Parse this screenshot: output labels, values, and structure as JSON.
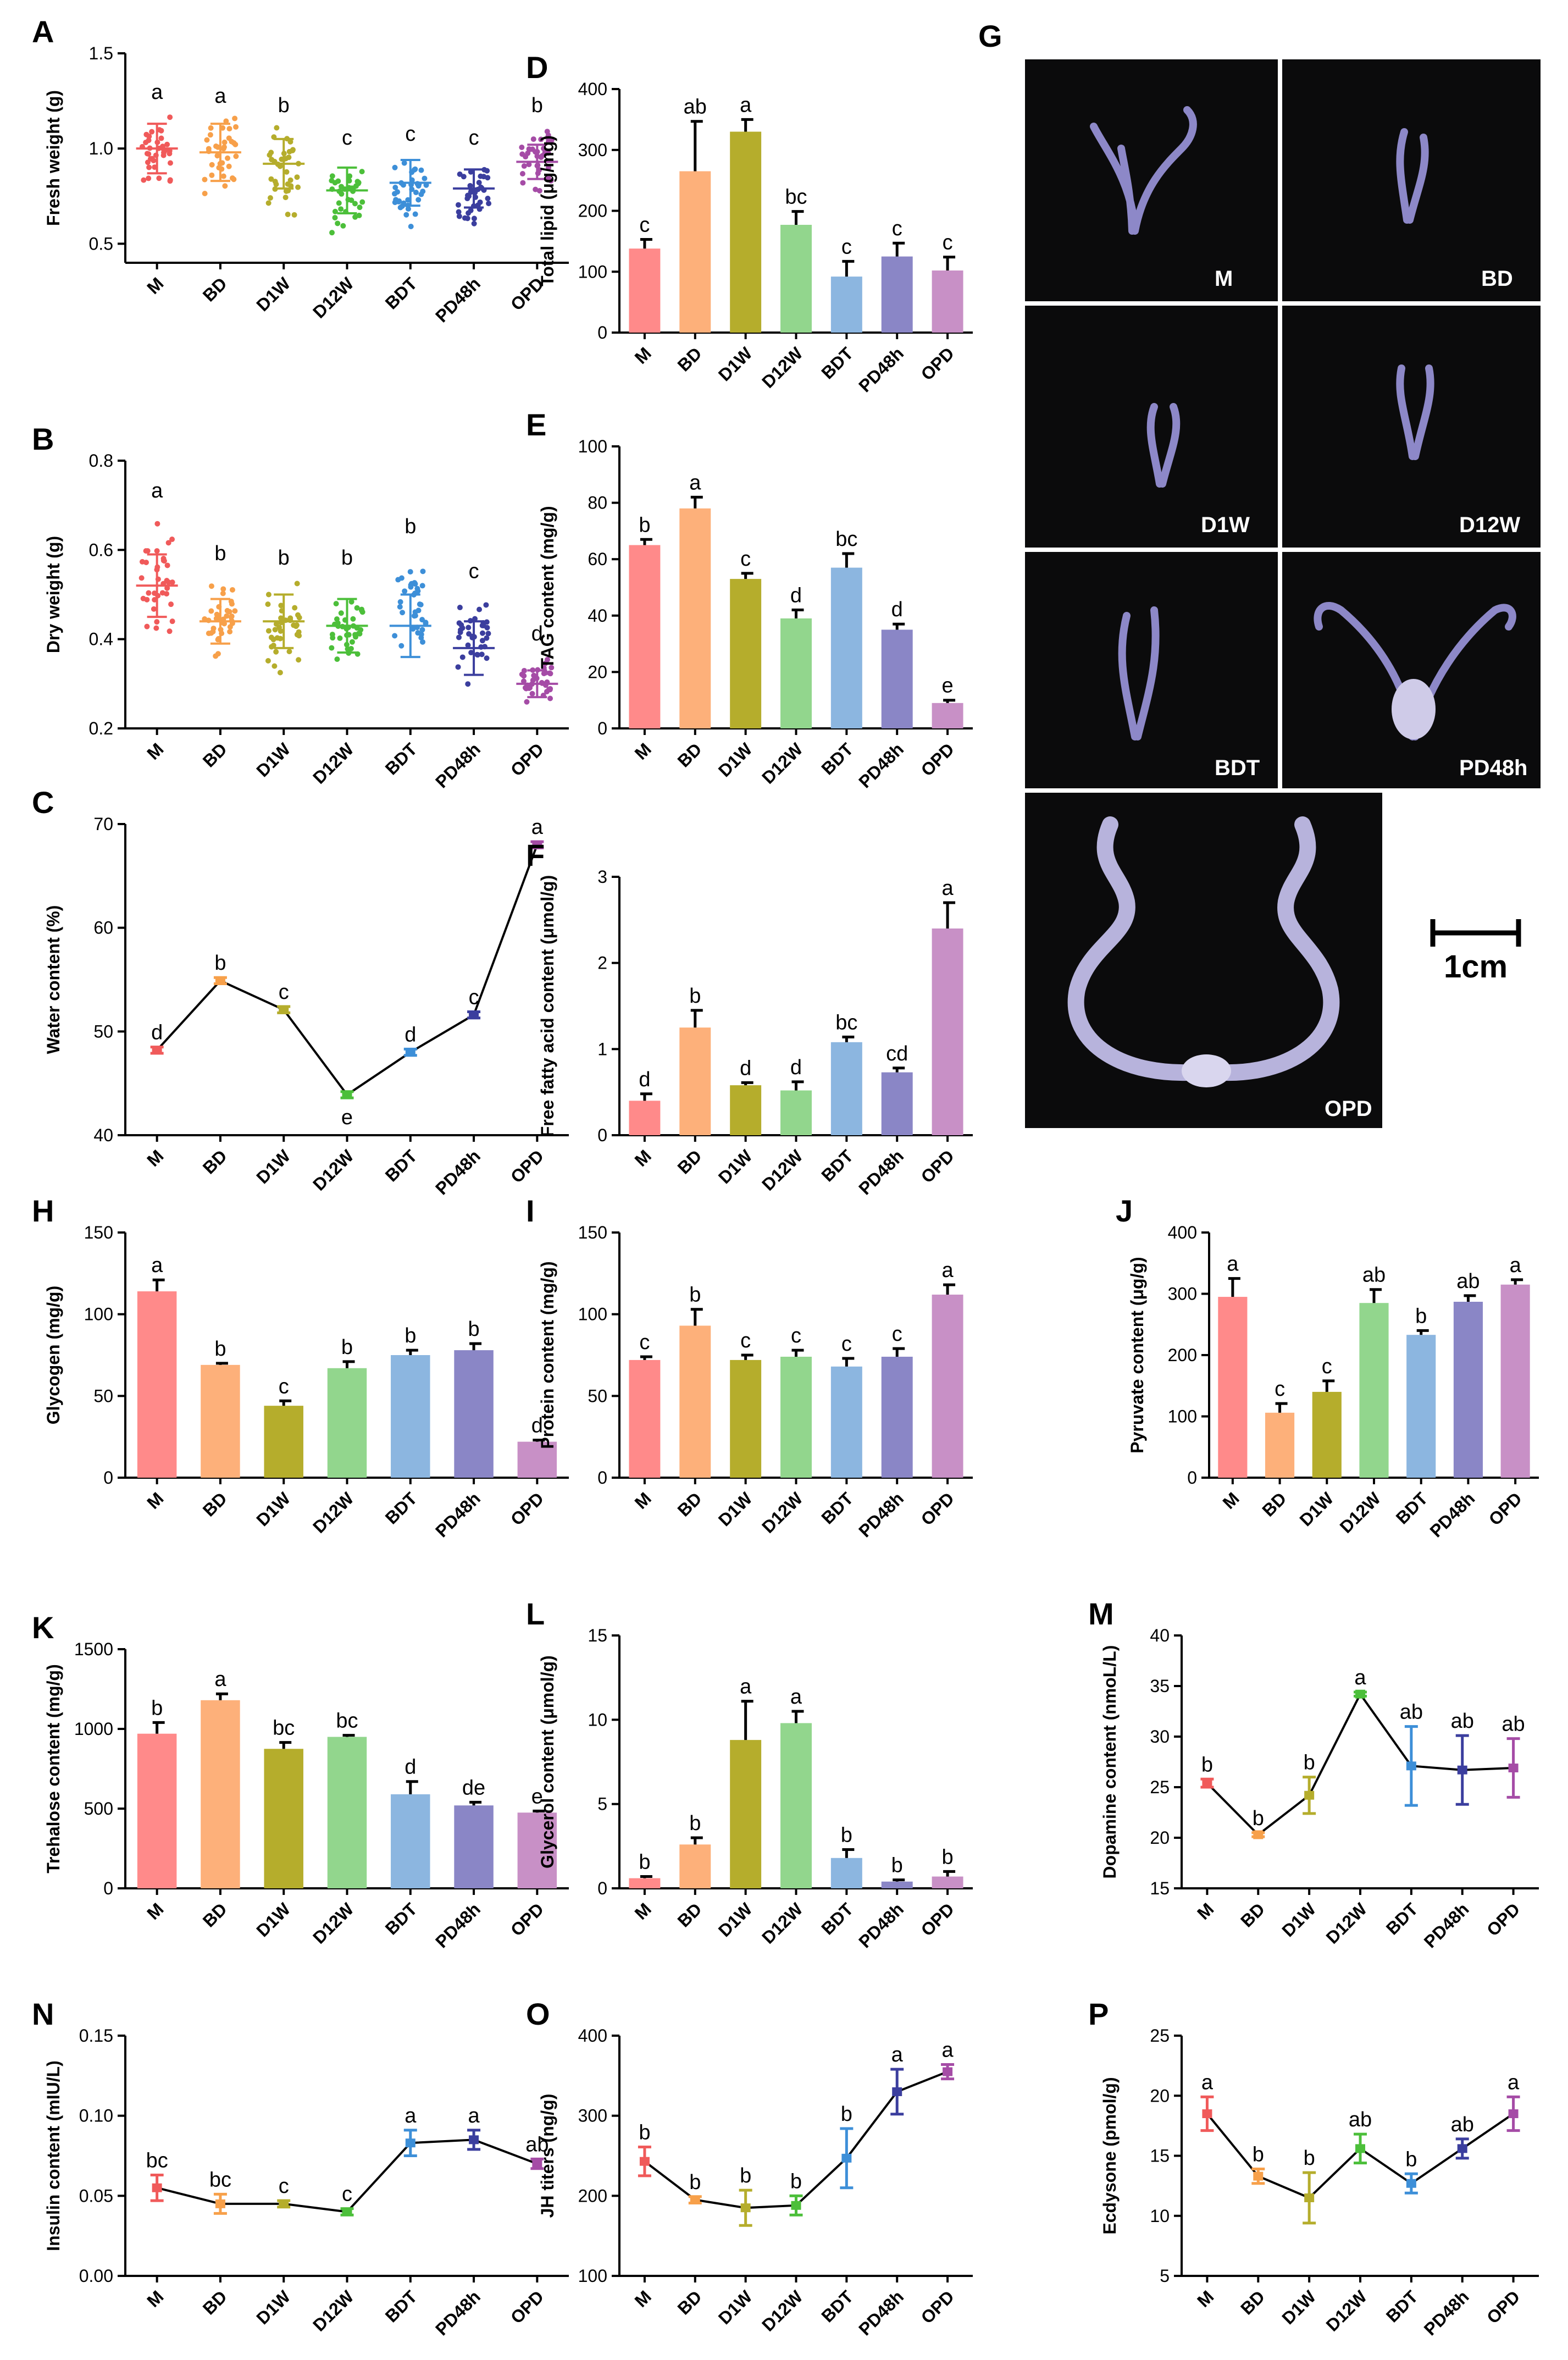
{
  "colors": {
    "M": "#FF8A8A",
    "BD": "#FDB07A",
    "D1W": "#B5AD2C",
    "D12W": "#92D68D",
    "BDT": "#8CB6E0",
    "PD48h": "#8A86C6",
    "OPD": "#C890C6",
    "scatter_M": "#F05A5A",
    "scatter_BD": "#F7A04A",
    "scatter_D1W": "#B5AD2C",
    "scatter_D12W": "#4CBF3A",
    "scatter_BDT": "#3D8FD8",
    "scatter_PD48h": "#3B3E9E",
    "scatter_OPD": "#A54CA6",
    "errbar": "#000000",
    "line": "#000000"
  },
  "photos": {
    "panel_label": "G",
    "labels": [
      "M",
      "BD",
      "D1W",
      "D12W",
      "BDT",
      "PD48h",
      "OPD"
    ],
    "scale_bar": "1cm"
  },
  "chart_data": [
    {
      "id": "A",
      "letter": "A",
      "type": "scatter",
      "ylabel": "Fresh weight (g)",
      "categories": [
        "M",
        "BD",
        "D1W",
        "D12W",
        "BDT",
        "PD48h",
        "OPD"
      ],
      "ylim": [
        0.4,
        1.5
      ],
      "yticks": [
        "0.5",
        "1.0",
        "1.5"
      ],
      "ytickvals": [
        0.5,
        1.0,
        1.5
      ],
      "means": [
        1.0,
        0.98,
        0.92,
        0.78,
        0.82,
        0.79,
        0.93
      ],
      "sd": [
        0.13,
        0.15,
        0.13,
        0.12,
        0.12,
        0.1,
        0.09
      ],
      "point_min": [
        0.73,
        0.72,
        0.62,
        0.48,
        0.55,
        0.55,
        0.75
      ],
      "point_max": [
        1.22,
        1.2,
        1.15,
        0.98,
        1.0,
        0.98,
        1.15
      ],
      "sig": [
        "a",
        "a",
        "b",
        "c",
        "c",
        "c",
        "b"
      ]
    },
    {
      "id": "B",
      "letter": "B",
      "type": "scatter",
      "ylabel": "Dry weight (g)",
      "categories": [
        "M",
        "BD",
        "D1W",
        "D12W",
        "BDT",
        "PD48h",
        "OPD"
      ],
      "ylim": [
        0.2,
        0.8
      ],
      "yticks": [
        "0.2",
        "0.4",
        "0.6",
        "0.8"
      ],
      "ytickvals": [
        0.2,
        0.4,
        0.6,
        0.8
      ],
      "means": [
        0.52,
        0.44,
        0.44,
        0.43,
        0.43,
        0.38,
        0.3
      ],
      "sd": [
        0.07,
        0.05,
        0.06,
        0.06,
        0.07,
        0.06,
        0.03
      ],
      "point_min": [
        0.36,
        0.32,
        0.3,
        0.3,
        0.3,
        0.28,
        0.24
      ],
      "point_max": [
        0.7,
        0.56,
        0.55,
        0.55,
        0.62,
        0.52,
        0.38
      ],
      "sig": [
        "a",
        "b",
        "b",
        "b",
        "b",
        "c",
        "d"
      ]
    },
    {
      "id": "C",
      "letter": "C",
      "type": "line",
      "ylabel": "Water content (%)",
      "categories": [
        "M",
        "BD",
        "D1W",
        "D12W",
        "BDT",
        "PD48h",
        "OPD"
      ],
      "ylim": [
        40,
        70
      ],
      "yticks": [
        "40",
        "50",
        "60",
        "70"
      ],
      "ytickvals": [
        40,
        50,
        60,
        70
      ],
      "values": [
        48.2,
        54.9,
        52.1,
        43.9,
        48.0,
        51.6,
        68.0
      ],
      "err": [
        0.3,
        0.3,
        0.3,
        0.3,
        0.3,
        0.3,
        0.3
      ],
      "sig": [
        "d",
        "b",
        "c",
        "e",
        "d",
        "c",
        "a"
      ],
      "sig_pos": [
        "above",
        "above",
        "above",
        "below",
        "above",
        "above",
        "above"
      ]
    },
    {
      "id": "D",
      "letter": "D",
      "type": "bar",
      "ylabel": "Total lipid (μg/mg)",
      "categories": [
        "M",
        "BD",
        "D1W",
        "D12W",
        "BDT",
        "PD48h",
        "OPD"
      ],
      "ylim": [
        0,
        400
      ],
      "yticks": [
        "0",
        "100",
        "200",
        "300",
        "400"
      ],
      "ytickvals": [
        0,
        100,
        200,
        300,
        400
      ],
      "values": [
        138,
        265,
        330,
        177,
        92,
        125,
        102
      ],
      "err": [
        15,
        82,
        20,
        22,
        25,
        22,
        22
      ],
      "sig": [
        "c",
        "ab",
        "a",
        "bc",
        "c",
        "c",
        "c"
      ]
    },
    {
      "id": "E",
      "letter": "E",
      "type": "bar",
      "ylabel": "TAG content (mg/g)",
      "categories": [
        "M",
        "BD",
        "D1W",
        "D12W",
        "BDT",
        "PD48h",
        "OPD"
      ],
      "ylim": [
        0,
        100
      ],
      "yticks": [
        "0",
        "20",
        "40",
        "60",
        "80",
        "100"
      ],
      "ytickvals": [
        0,
        20,
        40,
        60,
        80,
        100
      ],
      "values": [
        65,
        78,
        53,
        39,
        57,
        35,
        9
      ],
      "err": [
        2,
        4,
        2,
        3,
        5,
        2,
        1
      ],
      "sig": [
        "b",
        "a",
        "c",
        "d",
        "bc",
        "d",
        "e"
      ]
    },
    {
      "id": "F",
      "letter": "F",
      "type": "bar",
      "ylabel": "Free fatty acid content (μmol/g)",
      "categories": [
        "M",
        "BD",
        "D1W",
        "D12W",
        "BDT",
        "PD48h",
        "OPD"
      ],
      "ylim": [
        0,
        3
      ],
      "yticks": [
        "0",
        "1",
        "2",
        "3"
      ],
      "ytickvals": [
        0,
        1,
        2,
        3
      ],
      "values": [
        0.4,
        1.25,
        0.58,
        0.52,
        1.08,
        0.73,
        2.4
      ],
      "err": [
        0.08,
        0.2,
        0.03,
        0.1,
        0.06,
        0.05,
        0.3
      ],
      "sig": [
        "d",
        "b",
        "d",
        "d",
        "bc",
        "cd",
        "a"
      ]
    },
    {
      "id": "H",
      "letter": "H",
      "type": "bar",
      "ylabel": "Glycogen (mg/g)",
      "categories": [
        "M",
        "BD",
        "D1W",
        "D12W",
        "BDT",
        "PD48h",
        "OPD"
      ],
      "ylim": [
        0,
        150
      ],
      "yticks": [
        "0",
        "50",
        "100",
        "150"
      ],
      "ytickvals": [
        0,
        50,
        100,
        150
      ],
      "values": [
        114,
        69,
        44,
        67,
        75,
        78,
        22
      ],
      "err": [
        7,
        1,
        3,
        4,
        3,
        4,
        1
      ],
      "sig": [
        "a",
        "b",
        "c",
        "b",
        "b",
        "b",
        "d"
      ]
    },
    {
      "id": "I",
      "letter": "I",
      "type": "bar",
      "ylabel": "Protein content (mg/g)",
      "categories": [
        "M",
        "BD",
        "D1W",
        "D12W",
        "BDT",
        "PD48h",
        "OPD"
      ],
      "ylim": [
        0,
        150
      ],
      "yticks": [
        "0",
        "50",
        "100",
        "150"
      ],
      "ytickvals": [
        0,
        50,
        100,
        150
      ],
      "values": [
        72,
        93,
        72,
        74,
        68,
        74,
        112
      ],
      "err": [
        2,
        10,
        3,
        4,
        5,
        5,
        6
      ],
      "sig": [
        "c",
        "b",
        "c",
        "c",
        "c",
        "c",
        "a"
      ]
    },
    {
      "id": "J",
      "letter": "J",
      "type": "bar",
      "ylabel": "Pyruvate content (μg/g)",
      "categories": [
        "M",
        "BD",
        "D1W",
        "D12W",
        "BDT",
        "PD48h",
        "OPD"
      ],
      "ylim": [
        0,
        400
      ],
      "yticks": [
        "0",
        "100",
        "200",
        "300",
        "400"
      ],
      "ytickvals": [
        0,
        100,
        200,
        300,
        400
      ],
      "values": [
        295,
        106,
        140,
        285,
        233,
        287,
        315
      ],
      "err": [
        30,
        15,
        18,
        22,
        7,
        10,
        8
      ],
      "sig": [
        "a",
        "c",
        "c",
        "ab",
        "b",
        "ab",
        "a"
      ]
    },
    {
      "id": "K",
      "letter": "K",
      "type": "bar",
      "ylabel": "Trehalose content (mg/g)",
      "categories": [
        "M",
        "BD",
        "D1W",
        "D12W",
        "BDT",
        "PD48h",
        "OPD"
      ],
      "ylim": [
        0,
        1500
      ],
      "yticks": [
        "0",
        "500",
        "1000",
        "1500"
      ],
      "ytickvals": [
        0,
        500,
        1000,
        1500
      ],
      "values": [
        970,
        1180,
        875,
        950,
        590,
        520,
        475
      ],
      "err": [
        70,
        40,
        40,
        10,
        80,
        20,
        10
      ],
      "sig": [
        "b",
        "a",
        "bc",
        "bc",
        "d",
        "de",
        "e"
      ]
    },
    {
      "id": "L",
      "letter": "L",
      "type": "bar",
      "ylabel": "Glycerol content (μmol/g)",
      "categories": [
        "M",
        "BD",
        "D1W",
        "D12W",
        "BDT",
        "PD48h",
        "OPD"
      ],
      "ylim": [
        0,
        15
      ],
      "yticks": [
        "0",
        "5",
        "10",
        "15"
      ],
      "ytickvals": [
        0,
        5,
        10,
        15
      ],
      "values": [
        0.6,
        2.6,
        8.8,
        9.8,
        1.8,
        0.4,
        0.7
      ],
      "err": [
        0.1,
        0.4,
        2.3,
        0.7,
        0.5,
        0.1,
        0.3
      ],
      "sig": [
        "b",
        "b",
        "a",
        "a",
        "b",
        "b",
        "b"
      ]
    },
    {
      "id": "M",
      "letter": "M",
      "type": "line",
      "ylabel": "Dopamine content (nmoL/L)",
      "categories": [
        "M",
        "BD",
        "D1W",
        "D12W",
        "BDT",
        "PD48h",
        "OPD"
      ],
      "ylim": [
        15,
        40
      ],
      "yticks": [
        "15",
        "20",
        "25",
        "30",
        "35",
        "40"
      ],
      "ytickvals": [
        15,
        20,
        25,
        30,
        35,
        40
      ],
      "values": [
        25.4,
        20.3,
        24.2,
        34.2,
        27.1,
        26.7,
        26.9
      ],
      "err": [
        0.4,
        0.2,
        1.8,
        0.2,
        3.9,
        3.4,
        2.9
      ],
      "sig": [
        "b",
        "b",
        "b",
        "a",
        "ab",
        "ab",
        "ab"
      ],
      "sig_pos": [
        "above",
        "above",
        "above",
        "above",
        "above",
        "above",
        "above"
      ]
    },
    {
      "id": "N",
      "letter": "N",
      "type": "line",
      "ylabel": "Insulin content (mIU/L)",
      "categories": [
        "M",
        "BD",
        "D1W",
        "D12W",
        "BDT",
        "PD48h",
        "OPD"
      ],
      "ylim": [
        0,
        0.15
      ],
      "yticks": [
        "0.00",
        "0.05",
        "0.10",
        "0.15"
      ],
      "ytickvals": [
        0,
        0.05,
        0.1,
        0.15
      ],
      "values": [
        0.055,
        0.045,
        0.045,
        0.04,
        0.083,
        0.085,
        0.07
      ],
      "err": [
        0.008,
        0.006,
        0.002,
        0.002,
        0.008,
        0.006,
        0.003
      ],
      "sig": [
        "bc",
        "bc",
        "c",
        "c",
        "a",
        "a",
        "ab"
      ],
      "sig_pos": [
        "above",
        "above",
        "above",
        "above",
        "above",
        "above",
        "above"
      ]
    },
    {
      "id": "O",
      "letter": "O",
      "type": "line",
      "ylabel": "JH titers (ng/g)",
      "categories": [
        "M",
        "BD",
        "D1W",
        "D12W",
        "BDT",
        "PD48h",
        "OPD"
      ],
      "ylim": [
        100,
        400
      ],
      "yticks": [
        "100",
        "200",
        "300",
        "400"
      ],
      "ytickvals": [
        100,
        200,
        300,
        400
      ],
      "values": [
        243,
        195,
        185,
        188,
        247,
        330,
        355
      ],
      "err": [
        18,
        4,
        22,
        12,
        37,
        28,
        9
      ],
      "sig": [
        "b",
        "b",
        "b",
        "b",
        "b",
        "a",
        "a"
      ],
      "sig_pos": [
        "above",
        "above",
        "above",
        "above",
        "above",
        "above",
        "above"
      ]
    },
    {
      "id": "P",
      "letter": "P",
      "type": "line",
      "ylabel": "Ecdysone (pmol/g)",
      "categories": [
        "M",
        "BD",
        "D1W",
        "D12W",
        "BDT",
        "PD48h",
        "OPD"
      ],
      "ylim": [
        5,
        25
      ],
      "yticks": [
        "5",
        "10",
        "15",
        "20",
        "25"
      ],
      "ytickvals": [
        5,
        10,
        15,
        20,
        25
      ],
      "values": [
        18.5,
        13.3,
        11.5,
        15.6,
        12.7,
        15.6,
        18.5
      ],
      "err": [
        1.4,
        0.6,
        2.1,
        1.2,
        0.8,
        0.8,
        1.4
      ],
      "sig": [
        "a",
        "b",
        "b",
        "ab",
        "b",
        "ab",
        "a"
      ],
      "sig_pos": [
        "above",
        "above",
        "above",
        "above",
        "above",
        "above",
        "above"
      ]
    }
  ]
}
